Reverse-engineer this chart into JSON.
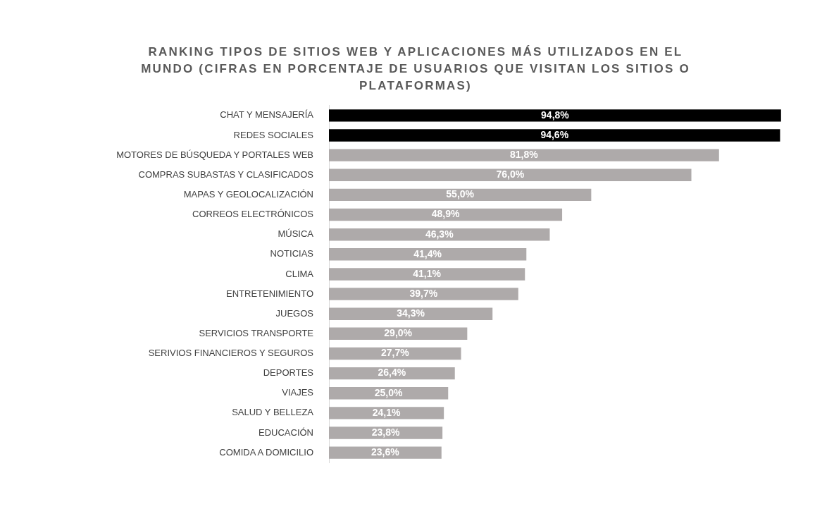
{
  "chart_data": {
    "type": "bar",
    "orientation": "horizontal",
    "title": "RANKING TIPOS DE SITIOS WEB Y APLICACIONES MÁS UTILIZADOS EN EL MUNDO (CIFRAS EN PORCENTAJE DE USUARIOS QUE VISITAN LOS SITIOS O PLATAFORMAS)",
    "categories": [
      "CHAT Y MENSAJERÍA",
      "REDES SOCIALES",
      "MOTORES DE BÚSQUEDA Y PORTALES WEB",
      "COMPRAS SUBASTAS Y CLASIFICADOS",
      "MAPAS Y GEOLOCALIZACIÓN",
      "CORREOS ELECTRÓNICOS",
      "MÚSICA",
      "NOTICIAS",
      "CLIMA",
      "ENTRETENIMIENTO",
      "JUEGOS",
      "SERVICIOS TRANSPORTE",
      "SERIVIOS FINANCIEROS Y SEGUROS",
      "DEPORTES",
      "VIAJES",
      "SALUD Y BELLEZA",
      "EDUCACIÓN",
      "COMIDA A DOMICILIO"
    ],
    "values": [
      94.8,
      94.6,
      81.8,
      76.0,
      55.0,
      48.9,
      46.3,
      41.4,
      41.1,
      39.7,
      34.3,
      29.0,
      27.7,
      26.4,
      25.0,
      24.1,
      23.8,
      23.6
    ],
    "value_labels": [
      "94,8%",
      "94,6%",
      "81,8%",
      "76,0%",
      "55,0%",
      "48,9%",
      "46,3%",
      "41,4%",
      "41,1%",
      "39,7%",
      "34,3%",
      "29,0%",
      "27,7%",
      "26,4%",
      "25,0%",
      "24,1%",
      "23,8%",
      "23,6%"
    ],
    "colors": [
      "#000000",
      "#000000",
      "#aeaaaa",
      "#aeaaaa",
      "#aeaaaa",
      "#aeaaaa",
      "#aeaaaa",
      "#aeaaaa",
      "#aeaaaa",
      "#aeaaaa",
      "#aeaaaa",
      "#aeaaaa",
      "#aeaaaa",
      "#aeaaaa",
      "#aeaaaa",
      "#aeaaaa",
      "#aeaaaa",
      "#aeaaaa"
    ],
    "legend": false
  }
}
